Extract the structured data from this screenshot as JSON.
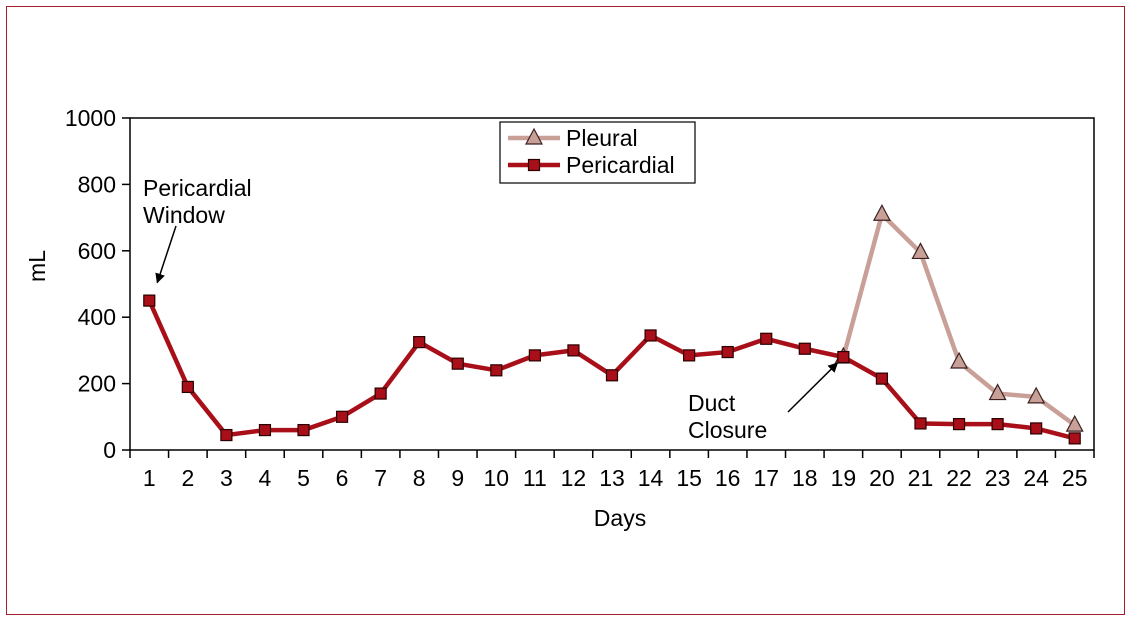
{
  "chart_data": {
    "type": "line",
    "xlabel": "Days",
    "ylabel": "mL",
    "ylim": [
      0,
      1000
    ],
    "yticks": [
      0,
      200,
      400,
      600,
      800,
      1000
    ],
    "categories": [
      "1",
      "2",
      "3",
      "4",
      "5",
      "6",
      "7",
      "8",
      "9",
      "10",
      "11",
      "12",
      "13",
      "14",
      "15",
      "16",
      "17",
      "18",
      "19",
      "20",
      "21",
      "22",
      "23",
      "24",
      "25"
    ],
    "legend_position": "top-center",
    "grid": false,
    "series": [
      {
        "name": "Pleural",
        "color": "#c9a097",
        "marker": "triangle",
        "x": [
          19,
          20,
          21,
          22,
          23,
          24,
          25
        ],
        "values": [
          280,
          710,
          595,
          265,
          170,
          160,
          75
        ]
      },
      {
        "name": "Pericardial",
        "color": "#a80f18",
        "marker": "square",
        "x": [
          1,
          2,
          3,
          4,
          5,
          6,
          7,
          8,
          9,
          10,
          11,
          12,
          13,
          14,
          15,
          16,
          17,
          18,
          19,
          20,
          21,
          22,
          23,
          24,
          25
        ],
        "values": [
          450,
          190,
          45,
          60,
          60,
          100,
          170,
          325,
          260,
          240,
          285,
          300,
          225,
          345,
          285,
          295,
          335,
          305,
          280,
          215,
          80,
          78,
          78,
          65,
          35
        ]
      }
    ],
    "annotations": [
      {
        "lines": [
          "Pericardial",
          "Window"
        ],
        "target_x": 1,
        "target_y": 450
      },
      {
        "lines": [
          "Duct",
          "Closure"
        ],
        "target_x": 19,
        "target_y": 280
      }
    ]
  }
}
